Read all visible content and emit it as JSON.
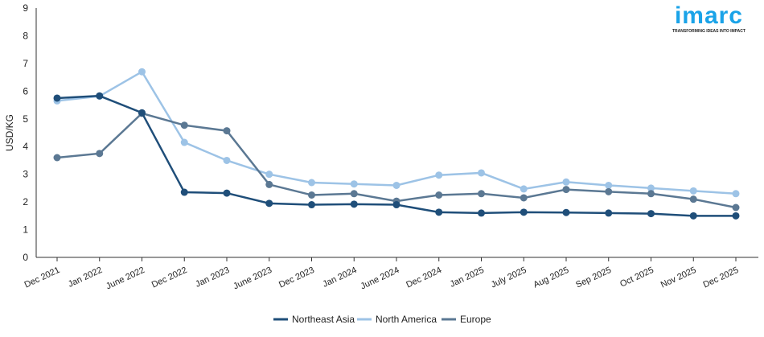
{
  "logo": {
    "name": "imarc",
    "tagline": "TRANSFORMING IDEAS INTO IMPACT"
  },
  "chart_data": {
    "type": "line",
    "title": "",
    "xlabel": "",
    "ylabel": "USD/KG",
    "ylim": [
      0,
      9
    ],
    "yticks": [
      0,
      1,
      2,
      3,
      4,
      5,
      6,
      7,
      8,
      9
    ],
    "grid": false,
    "legend": "bottom",
    "categories": [
      "Dec 2021",
      "Jan 2022",
      "June 2022",
      "Dec 2022",
      "Jan 2023",
      "June 2023",
      "Dec 2023",
      "Jan 2024",
      "June 2024",
      "Dec 2024",
      "Jan 2025",
      "July 2025",
      "Aug 2025",
      "Sep 2025",
      "Oct 2025",
      "Nov 2025",
      "Dec 2025"
    ],
    "series": [
      {
        "name": "Northeast Asia",
        "color": "#1f4e79",
        "values": [
          5.75,
          5.83,
          5.22,
          2.35,
          2.32,
          1.95,
          1.9,
          1.92,
          1.9,
          1.63,
          1.6,
          1.63,
          1.62,
          1.6,
          1.58,
          1.5,
          1.5
        ]
      },
      {
        "name": "North America",
        "color": "#9dc3e6",
        "values": [
          5.65,
          5.82,
          6.7,
          4.15,
          3.5,
          3.0,
          2.7,
          2.65,
          2.6,
          2.97,
          3.05,
          2.47,
          2.72,
          2.6,
          2.5,
          2.4,
          2.3
        ]
      },
      {
        "name": "Europe",
        "color": "#5b7893",
        "values": [
          3.6,
          3.75,
          5.2,
          4.77,
          4.57,
          2.63,
          2.25,
          2.3,
          2.03,
          2.25,
          2.3,
          2.15,
          2.45,
          2.37,
          2.3,
          2.1,
          1.8
        ]
      }
    ]
  }
}
